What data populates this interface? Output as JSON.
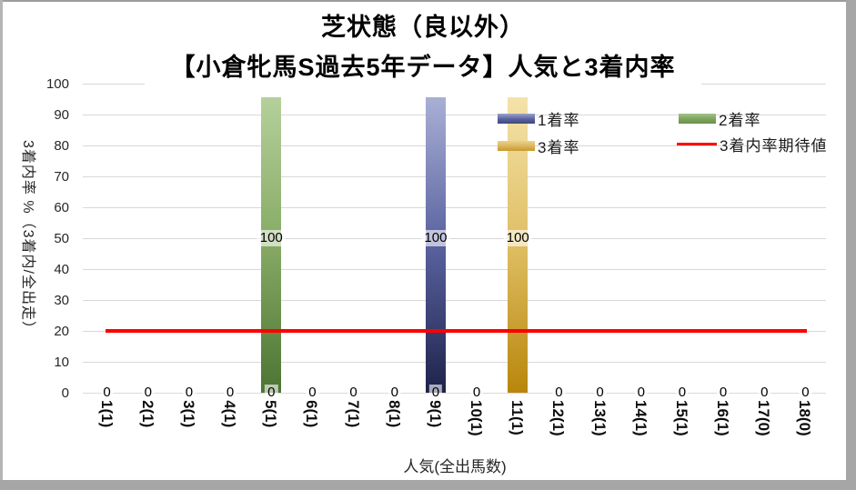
{
  "chart_data": {
    "type": "bar",
    "title": "芝状態（良以外）",
    "subtitle": "【小倉牝馬S過去5年データ】人気と3着内率",
    "xlabel": "人気(全出馬数)",
    "ylabel": "3着内率 %（3着内/全出走）",
    "ylim": [
      0,
      100
    ],
    "yticks": [
      0,
      10,
      20,
      30,
      40,
      50,
      60,
      70,
      80,
      90,
      100
    ],
    "grid": true,
    "gridline_color": "#D9D9D9",
    "legend_position": "inside-top-right",
    "categories": [
      "1(1)",
      "2(1)",
      "3(1)",
      "4(1)",
      "5(1)",
      "6(1)",
      "7(1)",
      "8(1)",
      "9(1)",
      "10(1)",
      "11(1)",
      "12(1)",
      "13(1)",
      "14(1)",
      "15(1)",
      "16(1)",
      "17(0)",
      "18(0)"
    ],
    "series": [
      {
        "name": "1着率",
        "type": "bar",
        "values": [
          0,
          0,
          0,
          0,
          0,
          0,
          0,
          0,
          100,
          0,
          0,
          0,
          0,
          0,
          0,
          0,
          0,
          0
        ],
        "color_top": "#A9B0D5",
        "color_mid": "#5A62A0",
        "color_bottom": "#1E234A"
      },
      {
        "name": "2着率",
        "type": "bar",
        "values": [
          0,
          0,
          0,
          0,
          100,
          0,
          0,
          0,
          0,
          0,
          0,
          0,
          0,
          0,
          0,
          0,
          0,
          0
        ],
        "color_top": "#B5D09B",
        "color_mid": "#86AA64",
        "color_bottom": "#4C7433"
      },
      {
        "name": "3着率",
        "type": "bar",
        "values": [
          0,
          0,
          0,
          0,
          0,
          0,
          0,
          0,
          0,
          0,
          100,
          0,
          0,
          0,
          0,
          0,
          0,
          0
        ],
        "color_top": "#F4E3A9",
        "color_mid": "#DFBE63",
        "color_bottom": "#B8860B"
      },
      {
        "name": "3着内率期待値",
        "type": "line",
        "value": 20,
        "color": "#FF0000"
      }
    ],
    "data_labels": {
      "zero_label_text": "0",
      "zero_label_hidden_categories": [
        "11(1)"
      ],
      "bar_label_position": "center"
    }
  }
}
